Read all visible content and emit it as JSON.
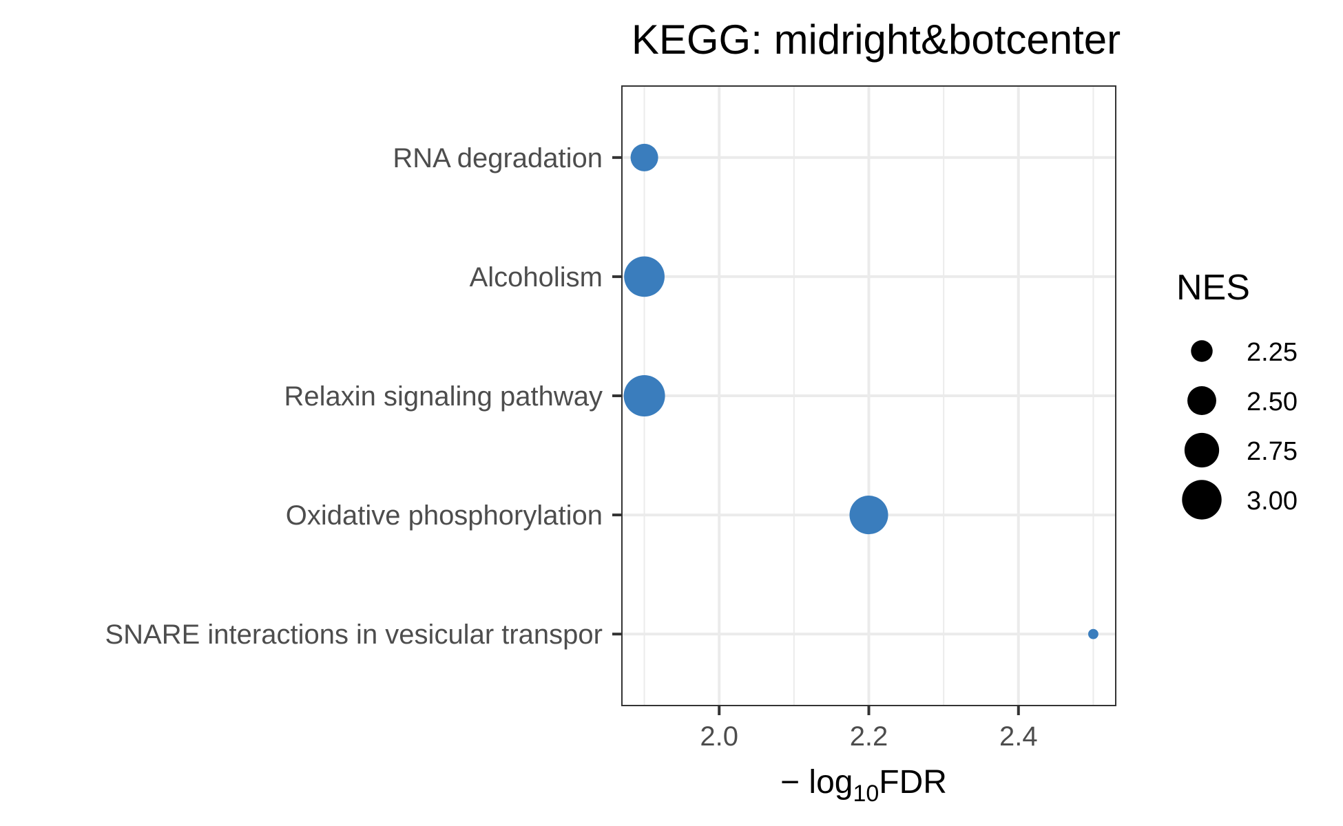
{
  "chart_data": {
    "type": "scatter",
    "title": "KEGG: midright&botcenter",
    "xlabel": {
      "prefix": "− log",
      "subscript": "10",
      "suffix": "FDR"
    },
    "ylabel": "",
    "xlim": [
      1.87,
      2.53
    ],
    "xticks": [
      2.0,
      2.2,
      2.4
    ],
    "xtick_labels": [
      "2.0",
      "2.2",
      "2.4"
    ],
    "grid": true,
    "point_color": "#3a7dbd",
    "categories": [
      "RNA degradation",
      "Alcoholism",
      "Relaxin signaling pathway",
      "Oxidative phosphorylation",
      "SNARE interactions in vesicular transpor"
    ],
    "points": [
      {
        "category": "RNA degradation",
        "x": 1.9,
        "nes": 2.45
      },
      {
        "category": "Alcoholism",
        "x": 1.9,
        "nes": 3.05
      },
      {
        "category": "Relaxin signaling pathway",
        "x": 1.9,
        "nes": 3.1
      },
      {
        "category": "Oxidative phosphorylation",
        "x": 2.2,
        "nes": 2.95
      },
      {
        "category": "SNARE interactions in vesicular transpor",
        "x": 2.5,
        "nes": 2.0
      }
    ],
    "size_legend": {
      "title": "NES",
      "placement": "right",
      "values": [
        2.25,
        2.5,
        2.75,
        3.0
      ],
      "labels": [
        "2.25",
        "2.50",
        "2.75",
        "3.00"
      ],
      "color": "#000000"
    }
  }
}
